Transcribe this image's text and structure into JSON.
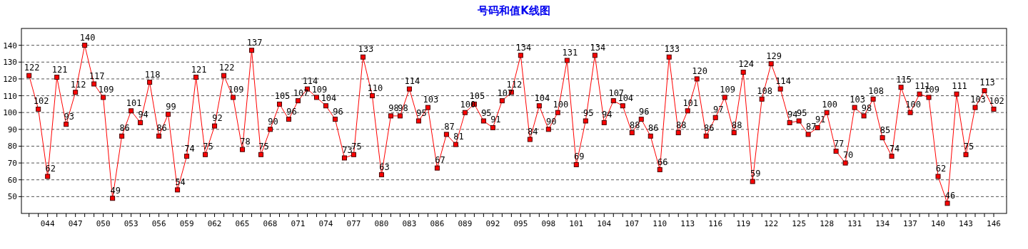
{
  "chart_data": {
    "type": "line",
    "title": "号码和值K线图",
    "categories": [
      null,
      null,
      "044",
      null,
      null,
      "047",
      null,
      null,
      "050",
      null,
      null,
      "053",
      null,
      null,
      "056",
      null,
      null,
      "059",
      null,
      null,
      "062",
      null,
      null,
      "065",
      null,
      null,
      "068",
      null,
      null,
      "071",
      null,
      null,
      "074",
      null,
      null,
      "077",
      null,
      null,
      "080",
      null,
      null,
      "083",
      null,
      null,
      "086",
      null,
      null,
      "089",
      null,
      null,
      "092",
      null,
      null,
      "095",
      null,
      null,
      "098",
      null,
      null,
      "101",
      null,
      null,
      "104",
      null,
      null,
      "107",
      null,
      null,
      "110",
      null,
      null,
      "113",
      null,
      null,
      "116",
      null,
      null,
      "119",
      null,
      null,
      "122",
      null,
      null,
      "125",
      null,
      null,
      "128",
      null,
      null,
      "131",
      null,
      null,
      "134",
      null,
      null,
      "137",
      null,
      null,
      "140",
      null,
      null,
      "143",
      null,
      null,
      "146"
    ],
    "values": [
      122,
      102,
      62,
      121,
      93,
      112,
      140,
      117,
      109,
      49,
      86,
      101,
      94,
      118,
      86,
      99,
      54,
      74,
      121,
      75,
      92,
      122,
      109,
      78,
      137,
      75,
      90,
      105,
      96,
      107,
      114,
      109,
      104,
      96,
      73,
      75,
      133,
      110,
      63,
      98,
      98,
      114,
      95,
      103,
      67,
      87,
      81,
      100,
      105,
      95,
      91,
      107,
      112,
      134,
      84,
      104,
      90,
      100,
      131,
      69,
      95,
      134,
      94,
      107,
      104,
      88,
      96,
      86,
      66,
      133,
      88,
      101,
      120,
      86,
      97,
      109,
      88,
      124,
      59,
      108,
      129,
      114,
      94,
      95,
      87,
      91,
      100,
      77,
      70,
      103,
      98,
      108,
      85,
      74,
      115,
      100,
      111,
      109,
      62,
      46,
      111,
      75,
      103,
      113,
      102
    ],
    "color": "#ff0000",
    "ylim": [
      40,
      150
    ],
    "yticks": [
      50,
      60,
      70,
      80,
      90,
      100,
      110,
      120,
      130,
      140
    ],
    "grid": "y",
    "marker": "square",
    "line_style": "solid",
    "data_labels": true
  }
}
